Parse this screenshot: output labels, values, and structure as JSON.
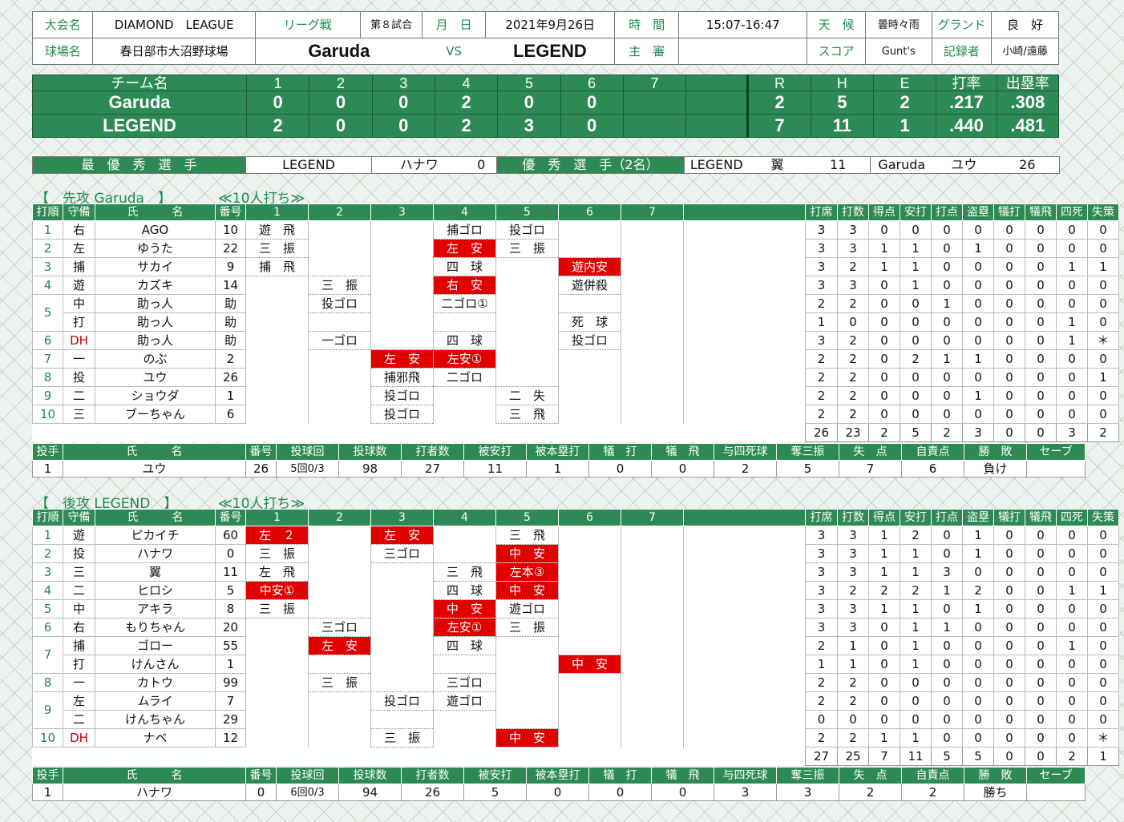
{
  "header": {
    "row1": {
      "taikai_label": "大会名",
      "taikai": "DIAMOND　LEAGUE",
      "league_label": "リーグ戦",
      "game_no": "第８試合",
      "date_label": "月　日",
      "date": "2021年9月26日",
      "time_label": "時　間",
      "time": "15:07-16:47",
      "weather_label": "天　候",
      "weather": "曇時々雨",
      "ground_label": "グランド",
      "ground": "良　好"
    },
    "row2": {
      "stadium_label": "球場名",
      "stadium": "春日部市大沼野球場",
      "team_a": "Garuda",
      "vs": "VS",
      "team_b": "LEGEND",
      "umpire_label": "主　審",
      "umpire": "",
      "score_label": "スコア",
      "score": "Gunt's",
      "recorder_label": "記録者",
      "recorder": "小崎/遠藤"
    }
  },
  "linescore": {
    "header": [
      "チーム名",
      "1",
      "2",
      "3",
      "4",
      "5",
      "6",
      "7",
      "",
      "R",
      "H",
      "E",
      "打率",
      "出塁率"
    ],
    "rows": [
      [
        "Garuda",
        "0",
        "0",
        "0",
        "2",
        "0",
        "0",
        "",
        "",
        "2",
        "5",
        "2",
        ".217",
        ".308"
      ],
      [
        "LEGEND",
        "2",
        "0",
        "0",
        "2",
        "3",
        "0",
        "",
        "",
        "7",
        "11",
        "1",
        ".440",
        ".481"
      ]
    ]
  },
  "awards": {
    "mvp_label": "最　優　秀　選　手",
    "mvp_team": "LEGEND",
    "mvp_name": "ハナワ",
    "mvp_no": "0",
    "exc_label": "優　秀　選　手（2名）",
    "exc1_team": "LEGEND",
    "exc1_name": "翼",
    "exc1_no": "11",
    "exc2_team": "Garuda",
    "exc2_name": "ユウ",
    "exc2_no": "26"
  },
  "top": {
    "title": "【　先攻 Garuda　】",
    "subtitle": "≪10人打ち≫",
    "header": [
      "打順",
      "守備",
      "氏　　　名",
      "番号",
      "1",
      "2",
      "3",
      "4",
      "5",
      "6",
      "7",
      "打席",
      "打数",
      "得点",
      "安打",
      "打点",
      "盗塁",
      "犠打",
      "犠飛",
      "四死",
      "失策"
    ],
    "rows": [
      {
        "order": "1",
        "pos": "右",
        "name": "AGO",
        "no": "10",
        "pa": [
          {
            "t": "遊　飛"
          },
          null,
          null,
          {
            "t": "捕ゴロ"
          },
          {
            "t": "投ゴロ"
          },
          null,
          null
        ],
        "stats": [
          "3",
          "3",
          "0",
          "0",
          "0",
          "0",
          "0",
          "0",
          "0",
          "0"
        ]
      },
      {
        "order": "2",
        "pos": "左",
        "name": "ゆうた",
        "no": "22",
        "pa": [
          {
            "t": "三　振"
          },
          null,
          null,
          {
            "t": "左　安",
            "h": 1
          },
          {
            "t": "三　振"
          },
          null,
          null
        ],
        "stats": [
          "3",
          "3",
          "1",
          "1",
          "0",
          "1",
          "0",
          "0",
          "0",
          "0"
        ]
      },
      {
        "order": "3",
        "pos": "捕",
        "name": "サカイ",
        "no": "9",
        "pa": [
          {
            "t": "捕　飛"
          },
          null,
          null,
          {
            "t": "四　球"
          },
          null,
          {
            "t": "遊内安",
            "h": 1
          },
          null
        ],
        "stats": [
          "3",
          "2",
          "1",
          "1",
          "0",
          "0",
          "0",
          "0",
          "1",
          "1"
        ]
      },
      {
        "order": "4",
        "pos": "遊",
        "name": "カズキ",
        "no": "14",
        "pa": [
          null,
          {
            "t": "三　振"
          },
          null,
          {
            "t": "右　安",
            "h": 1
          },
          null,
          {
            "t": "遊併殺"
          },
          null
        ],
        "stats": [
          "3",
          "3",
          "0",
          "1",
          "0",
          "0",
          "0",
          "0",
          "0",
          "0"
        ]
      },
      {
        "order": "5",
        "pos": "中",
        "name": "助っ人",
        "no": "助",
        "pa": [
          null,
          {
            "t": "投ゴロ"
          },
          null,
          {
            "t": "二ゴロ①"
          },
          null,
          null,
          null
        ],
        "stats": [
          "2",
          "2",
          "0",
          "0",
          "1",
          "0",
          "0",
          "0",
          "0",
          "0"
        ]
      },
      {
        "order": "",
        "pos": "打",
        "name": "助っ人",
        "no": "助",
        "pa": [
          null,
          null,
          null,
          null,
          null,
          {
            "t": "死　球"
          },
          null
        ],
        "stats": [
          "1",
          "0",
          "0",
          "0",
          "0",
          "0",
          "0",
          "0",
          "1",
          "0"
        ]
      },
      {
        "order": "6",
        "pos": "DH",
        "name": "助っ人",
        "no": "助",
        "pa": [
          null,
          {
            "t": "一ゴロ"
          },
          null,
          {
            "t": "四　球"
          },
          null,
          {
            "t": "投ゴロ"
          },
          null
        ],
        "stats": [
          "3",
          "2",
          "0",
          "0",
          "0",
          "0",
          "0",
          "0",
          "1",
          "＊"
        ]
      },
      {
        "order": "7",
        "pos": "一",
        "name": "のぶ",
        "no": "2",
        "pa": [
          null,
          null,
          {
            "t": "左　安",
            "h": 1
          },
          {
            "t": "左安①",
            "h": 1
          },
          null,
          null,
          null
        ],
        "stats": [
          "2",
          "2",
          "0",
          "2",
          "1",
          "1",
          "0",
          "0",
          "0",
          "0"
        ]
      },
      {
        "order": "8",
        "pos": "投",
        "name": "ユウ",
        "no": "26",
        "pa": [
          null,
          null,
          {
            "t": "捕邪飛"
          },
          {
            "t": "二ゴロ"
          },
          null,
          null,
          null
        ],
        "stats": [
          "2",
          "2",
          "0",
          "0",
          "0",
          "0",
          "0",
          "0",
          "0",
          "1"
        ]
      },
      {
        "order": "9",
        "pos": "二",
        "name": "ショウダ",
        "no": "1",
        "pa": [
          null,
          null,
          {
            "t": "投ゴロ"
          },
          null,
          {
            "t": "二　失"
          },
          null,
          null
        ],
        "stats": [
          "2",
          "2",
          "0",
          "0",
          "0",
          "1",
          "0",
          "0",
          "0",
          "0"
        ]
      },
      {
        "order": "10",
        "pos": "三",
        "name": "ブーちゃん",
        "no": "6",
        "pa": [
          null,
          null,
          {
            "t": "投ゴロ"
          },
          null,
          {
            "t": "三　飛"
          },
          null,
          null
        ],
        "stats": [
          "2",
          "2",
          "0",
          "0",
          "0",
          "0",
          "0",
          "0",
          "0",
          "0"
        ]
      }
    ],
    "totals": [
      "26",
      "23",
      "2",
      "5",
      "2",
      "3",
      "0",
      "0",
      "3",
      "2"
    ],
    "pitch_header": [
      "投手",
      "氏　　　名",
      "番号",
      "投球回",
      "投球数",
      "打者数",
      "被安打",
      "被本塁打",
      "犠　打",
      "犠　飛",
      "与四死球",
      "奪三振",
      "失　点",
      "自責点",
      "勝　敗",
      "セーブ"
    ],
    "pitch_rows": [
      [
        "1",
        "ユウ",
        "26",
        "5回0/3",
        "98",
        "27",
        "11",
        "1",
        "0",
        "0",
        "2",
        "5",
        "7",
        "6",
        "負け",
        ""
      ]
    ]
  },
  "bottom": {
    "title": "【　後攻 LEGEND　】",
    "subtitle": "≪10人打ち≫",
    "header": [
      "打順",
      "守備",
      "氏　　　名",
      "番号",
      "1",
      "2",
      "3",
      "4",
      "5",
      "6",
      "7",
      "打席",
      "打数",
      "得点",
      "安打",
      "打点",
      "盗塁",
      "犠打",
      "犠飛",
      "四死",
      "失策"
    ],
    "rows": [
      {
        "order": "1",
        "pos": "遊",
        "name": "ピカイチ",
        "no": "60",
        "pa": [
          {
            "t": "左　２",
            "h": 1
          },
          null,
          {
            "t": "左　安",
            "h": 1
          },
          null,
          {
            "t": "三　飛"
          },
          null,
          null
        ],
        "stats": [
          "3",
          "3",
          "1",
          "2",
          "0",
          "1",
          "0",
          "0",
          "0",
          "0"
        ]
      },
      {
        "order": "2",
        "pos": "投",
        "name": "ハナワ",
        "no": "0",
        "pa": [
          {
            "t": "三　振"
          },
          null,
          {
            "t": "三ゴロ"
          },
          null,
          {
            "t": "中　安",
            "h": 1
          },
          null,
          null
        ],
        "stats": [
          "3",
          "3",
          "1",
          "1",
          "0",
          "1",
          "0",
          "0",
          "0",
          "0"
        ]
      },
      {
        "order": "3",
        "pos": "三",
        "name": "翼",
        "no": "11",
        "pa": [
          {
            "t": "左　飛"
          },
          null,
          null,
          {
            "t": "三　飛"
          },
          {
            "t": "左本③",
            "h": 1
          },
          null,
          null
        ],
        "stats": [
          "3",
          "3",
          "1",
          "1",
          "3",
          "0",
          "0",
          "0",
          "0",
          "0"
        ]
      },
      {
        "order": "4",
        "pos": "二",
        "name": "ヒロシ",
        "no": "5",
        "pa": [
          {
            "t": "中安①",
            "h": 1
          },
          null,
          null,
          {
            "t": "四　球"
          },
          {
            "t": "中　安",
            "h": 1
          },
          null,
          null
        ],
        "stats": [
          "3",
          "2",
          "2",
          "2",
          "1",
          "2",
          "0",
          "0",
          "1",
          "1"
        ]
      },
      {
        "order": "5",
        "pos": "中",
        "name": "アキラ",
        "no": "8",
        "pa": [
          {
            "t": "三　振"
          },
          null,
          null,
          {
            "t": "中　安",
            "h": 1
          },
          {
            "t": "遊ゴロ"
          },
          null,
          null
        ],
        "stats": [
          "3",
          "3",
          "1",
          "1",
          "0",
          "1",
          "0",
          "0",
          "0",
          "0"
        ]
      },
      {
        "order": "6",
        "pos": "右",
        "name": "もりちゃん",
        "no": "20",
        "pa": [
          null,
          {
            "t": "三ゴロ"
          },
          null,
          {
            "t": "左安①",
            "h": 1
          },
          {
            "t": "三　振"
          },
          null,
          null
        ],
        "stats": [
          "3",
          "3",
          "0",
          "1",
          "1",
          "0",
          "0",
          "0",
          "0",
          "0"
        ]
      },
      {
        "order": "7",
        "pos": "捕",
        "name": "ゴロー",
        "no": "55",
        "pa": [
          null,
          {
            "t": "左　安",
            "h": 1
          },
          null,
          {
            "t": "四　球"
          },
          null,
          null,
          null
        ],
        "stats": [
          "2",
          "1",
          "0",
          "1",
          "0",
          "0",
          "0",
          "0",
          "1",
          "0"
        ]
      },
      {
        "order": "",
        "pos": "打",
        "name": "けんさん",
        "no": "1",
        "pa": [
          null,
          null,
          null,
          null,
          null,
          {
            "t": "中　安",
            "h": 1
          },
          null
        ],
        "stats": [
          "1",
          "1",
          "0",
          "1",
          "0",
          "0",
          "0",
          "0",
          "0",
          "0"
        ]
      },
      {
        "order": "8",
        "pos": "一",
        "name": "カトウ",
        "no": "99",
        "pa": [
          null,
          {
            "t": "三　振"
          },
          null,
          {
            "t": "三ゴロ"
          },
          null,
          null,
          null
        ],
        "stats": [
          "2",
          "2",
          "0",
          "0",
          "0",
          "0",
          "0",
          "0",
          "0",
          "0"
        ]
      },
      {
        "order": "9",
        "pos": "左",
        "name": "ムライ",
        "no": "7",
        "pa": [
          null,
          null,
          {
            "t": "投ゴロ"
          },
          {
            "t": "遊ゴロ"
          },
          null,
          null,
          null
        ],
        "stats": [
          "2",
          "2",
          "0",
          "0",
          "0",
          "0",
          "0",
          "0",
          "0",
          "0"
        ]
      },
      {
        "order": "",
        "pos": "二",
        "name": "けんちゃん",
        "no": "29",
        "pa": [
          null,
          null,
          null,
          null,
          null,
          null,
          null
        ],
        "stats": [
          "0",
          "0",
          "0",
          "0",
          "0",
          "0",
          "0",
          "0",
          "0",
          "0"
        ]
      },
      {
        "order": "10",
        "pos": "DH",
        "name": "ナベ",
        "no": "12",
        "pa": [
          null,
          null,
          {
            "t": "三　振"
          },
          null,
          {
            "t": "中　安",
            "h": 1
          },
          null,
          null
        ],
        "stats": [
          "2",
          "2",
          "1",
          "1",
          "0",
          "0",
          "0",
          "0",
          "0",
          "＊"
        ]
      }
    ],
    "totals": [
      "27",
      "25",
      "7",
      "11",
      "5",
      "5",
      "0",
      "0",
      "2",
      "1"
    ],
    "pitch_header": [
      "投手",
      "氏　　　名",
      "番号",
      "投球回",
      "投球数",
      "打者数",
      "被安打",
      "被本塁打",
      "犠　打",
      "犠　飛",
      "与四死球",
      "奪三振",
      "失　点",
      "自責点",
      "勝　敗",
      "セーブ"
    ],
    "pitch_rows": [
      [
        "1",
        "ハナワ",
        "0",
        "6回0/3",
        "94",
        "26",
        "5",
        "0",
        "0",
        "0",
        "3",
        "3",
        "2",
        "2",
        "勝ち",
        ""
      ]
    ]
  }
}
